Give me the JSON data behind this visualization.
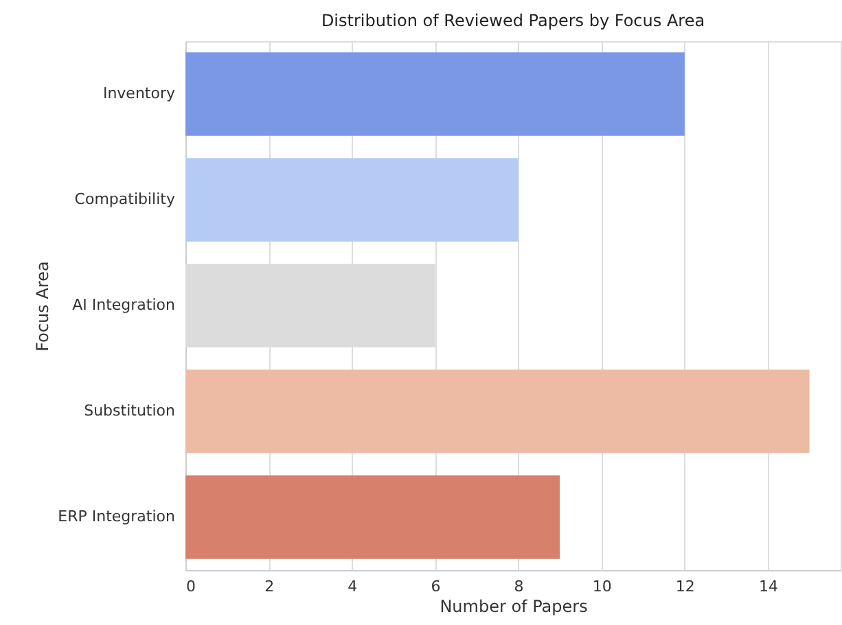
{
  "chart_data": {
    "type": "bar",
    "orientation": "horizontal",
    "title": "Distribution of Reviewed Papers by Focus Area",
    "xlabel": "Number of Papers",
    "ylabel": "Focus Area",
    "categories": [
      "Inventory",
      "Compatibility",
      "AI Integration",
      "Substitution",
      "ERP Integration"
    ],
    "values": [
      12,
      8,
      6,
      15,
      9
    ],
    "colors": [
      "#7b98e6",
      "#b5cbf5",
      "#dcdcdc",
      "#edbba3",
      "#d7806b"
    ],
    "xlim": [
      0,
      15.75
    ],
    "xticks": [
      0,
      2,
      4,
      6,
      8,
      10,
      12,
      14
    ],
    "grid": "x",
    "legend": false
  }
}
